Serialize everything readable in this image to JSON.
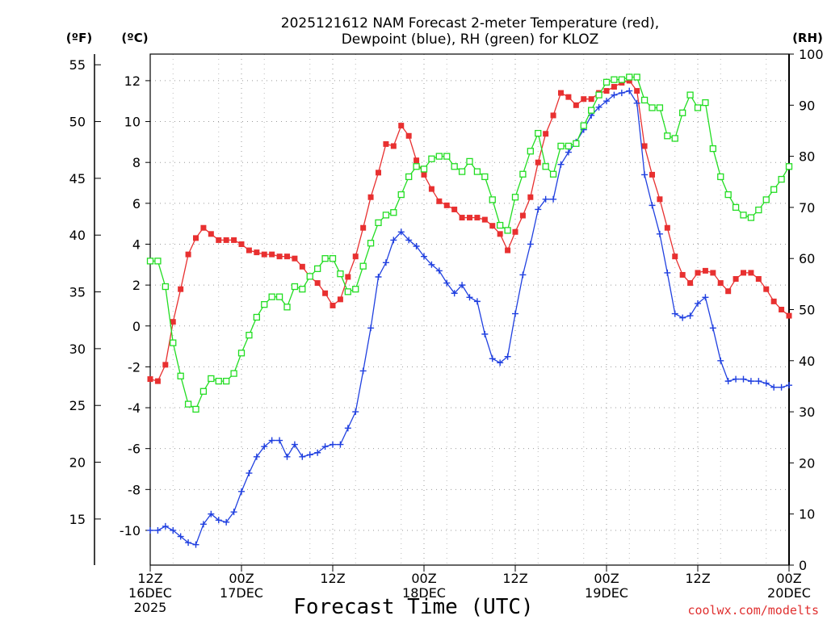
{
  "chart_data": {
    "type": "line",
    "title_line1": "2025121612 NAM Forecast 2-meter Temperature (red),",
    "title_line2": "Dewpoint (blue), RH (green) for KLOZ",
    "unit_labels": {
      "fahrenheit": "(ºF)",
      "celsius": "(ºC)",
      "rh": "(RH)"
    },
    "xlabel": "Forecast Time (UTC)",
    "credit": "coolwx.com/modelts",
    "x_hours_range": [
      0,
      84
    ],
    "ylim_celsius": [
      -11.7,
      13.3
    ],
    "ylim_rh": [
      0,
      100
    ],
    "x_ticks": [
      {
        "hour": 0,
        "line1": "12Z",
        "line2": "16DEC",
        "line3": "2025"
      },
      {
        "hour": 12,
        "line1": "00Z",
        "line2": "17DEC",
        "line3": ""
      },
      {
        "hour": 24,
        "line1": "12Z",
        "line2": "",
        "line3": ""
      },
      {
        "hour": 36,
        "line1": "00Z",
        "line2": "18DEC",
        "line3": ""
      },
      {
        "hour": 48,
        "line1": "12Z",
        "line2": "",
        "line3": ""
      },
      {
        "hour": 60,
        "line1": "00Z",
        "line2": "19DEC",
        "line3": ""
      },
      {
        "hour": 72,
        "line1": "12Z",
        "line2": "",
        "line3": ""
      },
      {
        "hour": 84,
        "line1": "00Z",
        "line2": "20DEC",
        "line3": ""
      }
    ],
    "y_ticks_celsius": [
      -10,
      -8,
      -6,
      -4,
      -2,
      0,
      2,
      4,
      6,
      8,
      10,
      12
    ],
    "y_ticks_fahrenheit": [
      15,
      20,
      25,
      30,
      35,
      40,
      45,
      50,
      55
    ],
    "y_ticks_rh": [
      0,
      10,
      20,
      30,
      40,
      50,
      60,
      70,
      80,
      90,
      100
    ],
    "series": [
      {
        "name": "Temperature",
        "unit": "C",
        "color": "#e83030",
        "marker": "filled-square",
        "values": [
          -2.6,
          -2.7,
          -1.9,
          0.2,
          1.8,
          3.5,
          4.3,
          4.8,
          4.5,
          4.2,
          4.2,
          4.2,
          4.0,
          3.7,
          3.6,
          3.5,
          3.5,
          3.4,
          3.4,
          3.3,
          2.9,
          2.4,
          2.1,
          1.6,
          1.0,
          1.3,
          2.4,
          3.4,
          4.8,
          6.3,
          7.5,
          8.9,
          8.8,
          9.8,
          9.3,
          8.1,
          7.4,
          6.7,
          6.1,
          5.9,
          5.7,
          5.3,
          5.3,
          5.3,
          5.2,
          4.9,
          4.5,
          3.7,
          4.6,
          5.4,
          6.3,
          8.0,
          9.4,
          10.3,
          11.4,
          11.2,
          10.8,
          11.1,
          11.1,
          11.4,
          11.5,
          11.7,
          11.9,
          12.0,
          11.5,
          8.8,
          7.4,
          6.2,
          4.8,
          3.4,
          2.5,
          2.1,
          2.6,
          2.7,
          2.6,
          2.1,
          1.7,
          2.3,
          2.6,
          2.6,
          2.3,
          1.8,
          1.2,
          0.8,
          0.5
        ]
      },
      {
        "name": "Dewpoint",
        "unit": "C",
        "color": "#2040e0",
        "marker": "plus",
        "values": [
          -10.0,
          -10.0,
          -9.8,
          -10.0,
          -10.3,
          -10.6,
          -10.7,
          -9.7,
          -9.2,
          -9.5,
          -9.6,
          -9.1,
          -8.1,
          -7.2,
          -6.4,
          -5.9,
          -5.6,
          -5.6,
          -6.4,
          -5.8,
          -6.4,
          -6.3,
          -6.2,
          -5.9,
          -5.8,
          -5.8,
          -5.0,
          -4.2,
          -2.2,
          -0.1,
          2.4,
          3.1,
          4.2,
          4.6,
          4.2,
          3.9,
          3.4,
          3.0,
          2.7,
          2.1,
          1.6,
          2.0,
          1.4,
          1.2,
          -0.4,
          -1.6,
          -1.8,
          -1.5,
          0.6,
          2.5,
          4.0,
          5.7,
          6.2,
          6.2,
          7.9,
          8.5,
          9.0,
          9.6,
          10.3,
          10.7,
          11.0,
          11.3,
          11.4,
          11.5,
          10.9,
          7.4,
          5.9,
          4.5,
          2.6,
          0.6,
          0.4,
          0.5,
          1.1,
          1.4,
          -0.1,
          -1.7,
          -2.7,
          -2.6,
          -2.6,
          -2.7,
          -2.7,
          -2.8,
          -3.0,
          -3.0,
          -2.9
        ]
      },
      {
        "name": "RH",
        "unit": "percent",
        "color": "#22dd22",
        "marker": "open-square",
        "values": [
          59.5,
          59.5,
          54.5,
          43.5,
          37.0,
          31.5,
          30.5,
          34.0,
          36.5,
          36.0,
          36.0,
          37.5,
          41.5,
          45.0,
          48.5,
          51.0,
          52.5,
          52.5,
          50.5,
          54.5,
          54.0,
          56.5,
          58.0,
          60.0,
          60.0,
          57.0,
          53.5,
          54.0,
          58.5,
          63.0,
          67.0,
          68.5,
          69.0,
          72.5,
          76.0,
          78.0,
          77.5,
          79.5,
          80.0,
          80.0,
          78.0,
          77.0,
          79.0,
          77.0,
          76.0,
          71.5,
          66.5,
          65.5,
          72.0,
          76.5,
          81.0,
          84.5,
          78.0,
          76.5,
          82.0,
          82.0,
          82.5,
          86.0,
          89.0,
          92.0,
          94.5,
          95.0,
          95.0,
          95.5,
          95.5,
          91.0,
          89.5,
          89.5,
          84.0,
          83.5,
          88.5,
          92.0,
          89.5,
          90.5,
          81.5,
          76.0,
          72.5,
          70.0,
          68.5,
          68.0,
          69.5,
          71.5,
          73.5,
          75.5,
          78.0
        ]
      }
    ]
  }
}
